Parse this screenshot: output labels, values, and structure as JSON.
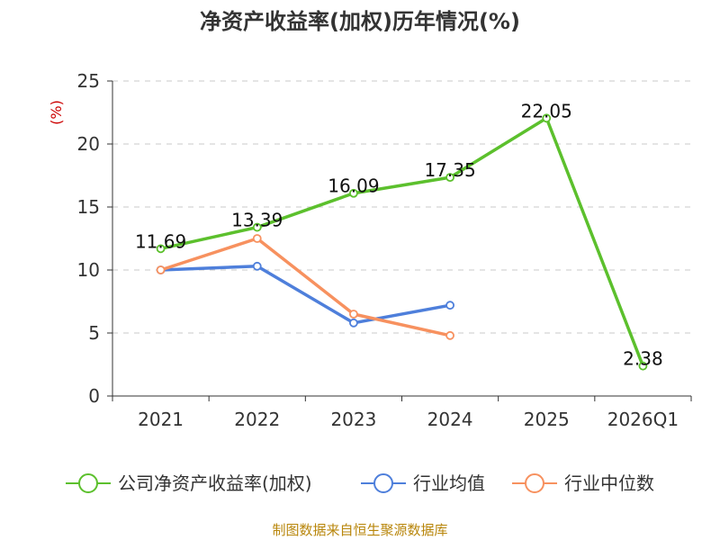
{
  "chart_data": {
    "type": "line",
    "title": "净资产收益率(加权)历年情况(%)",
    "ylabel": "(%)",
    "xlabel": "",
    "categories": [
      "2021",
      "2022",
      "2023",
      "2024",
      "2025",
      "2026Q1"
    ],
    "ylim": [
      0,
      25
    ],
    "yticks": [
      0,
      5,
      10,
      15,
      20,
      25
    ],
    "grid": true,
    "legend_position": "bottom",
    "series": [
      {
        "name": "公司净资产收益率(加权)",
        "color": "#5cc02d",
        "values": [
          11.69,
          13.39,
          16.09,
          17.35,
          22.05,
          2.38
        ],
        "labels": [
          "11.69",
          "13.39",
          "16.09",
          "17.35",
          "22.05",
          "2.38"
        ]
      },
      {
        "name": "行业均值",
        "color": "#4e7fdb",
        "values": [
          10.0,
          10.3,
          5.8,
          7.2,
          null,
          null
        ]
      },
      {
        "name": "行业中位数",
        "color": "#f7915f",
        "values": [
          10.0,
          12.5,
          6.5,
          4.8,
          null,
          null
        ]
      }
    ]
  },
  "source_note": "制图数据来自恒生聚源数据库"
}
